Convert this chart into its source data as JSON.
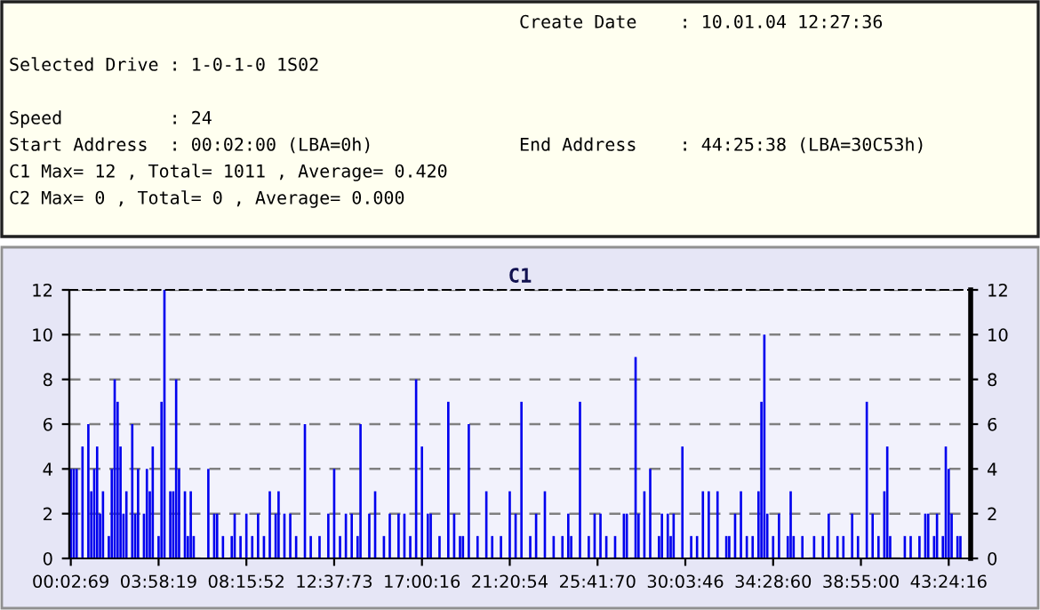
{
  "chart_data": {
    "type": "bar",
    "title": "C1",
    "annotations": [
      "Create Date    : 10.01.04 12:27:36",
      "Selected Drive : 1-0-1-0 1S02",
      "Speed          : 24",
      "Start Address  : 00:02:00 (LBA=0h)",
      "End Address    : 44:25:38 (LBA=30C53h)",
      "C1 Max= 12 , Total= 1011 , Average= 0.420",
      "C2 Max= 0 , Total= 0 , Average= 0.000"
    ],
    "categories": [
      "00:02:69",
      null,
      null,
      null,
      null,
      null,
      null,
      null,
      null,
      null,
      null,
      null,
      null,
      null,
      null,
      null,
      null,
      null,
      null,
      null,
      null,
      null,
      null,
      null,
      null,
      null,
      null,
      null,
      null,
      null,
      "03:58:19",
      null,
      null,
      null,
      null,
      null,
      null,
      null,
      null,
      null,
      null,
      null,
      null,
      null,
      null,
      null,
      null,
      null,
      null,
      null,
      null,
      null,
      null,
      null,
      null,
      null,
      null,
      null,
      null,
      null,
      "08:15:52",
      null,
      null,
      null,
      null,
      null,
      null,
      null,
      null,
      null,
      null,
      null,
      null,
      null,
      null,
      null,
      null,
      null,
      null,
      null,
      null,
      null,
      null,
      null,
      null,
      null,
      null,
      null,
      null,
      null,
      "12:37:73",
      null,
      null,
      null,
      null,
      null,
      null,
      null,
      null,
      null,
      null,
      null,
      null,
      null,
      null,
      null,
      null,
      null,
      null,
      null,
      null,
      null,
      null,
      null,
      null,
      null,
      null,
      null,
      null,
      null,
      "17:00:16",
      null,
      null,
      null,
      null,
      null,
      null,
      null,
      null,
      null,
      null,
      null,
      null,
      null,
      null,
      null,
      null,
      null,
      null,
      null,
      null,
      null,
      null,
      null,
      null,
      null,
      null,
      null,
      null,
      null,
      "21:20:54",
      null,
      null,
      null,
      null,
      null,
      null,
      null,
      null,
      null,
      null,
      null,
      null,
      null,
      null,
      null,
      null,
      null,
      null,
      null,
      null,
      null,
      null,
      null,
      null,
      null,
      null,
      null,
      null,
      null,
      "25:41:70",
      null,
      null,
      null,
      null,
      null,
      null,
      null,
      null,
      null,
      null,
      null,
      null,
      null,
      null,
      null,
      null,
      null,
      null,
      null,
      null,
      null,
      null,
      null,
      null,
      null,
      null,
      null,
      null,
      null,
      "30:03:46",
      null,
      null,
      null,
      null,
      null,
      null,
      null,
      null,
      null,
      null,
      null,
      null,
      null,
      null,
      null,
      null,
      null,
      null,
      null,
      null,
      null,
      null,
      null,
      null,
      null,
      null,
      null,
      null,
      null,
      "34:28:60",
      null,
      null,
      null,
      null,
      null,
      null,
      null,
      null,
      null,
      null,
      null,
      null,
      null,
      null,
      null,
      null,
      null,
      null,
      null,
      null,
      null,
      null,
      null,
      null,
      null,
      null,
      null,
      null,
      null,
      "38:55:00",
      null,
      null,
      null,
      null,
      null,
      null,
      null,
      null,
      null,
      null,
      null,
      null,
      null,
      null,
      null,
      null,
      null,
      null,
      null,
      null,
      null,
      null,
      null,
      null,
      null,
      null,
      null,
      null,
      null,
      "43:24:16",
      null,
      null,
      null,
      null,
      null,
      null,
      null
    ],
    "series": [
      {
        "color": "#0000ee",
        "values": [
          4,
          4,
          4,
          0,
          5,
          0,
          6,
          3,
          4,
          5,
          2,
          3,
          0,
          1,
          4,
          8,
          7,
          5,
          2,
          3,
          0,
          6,
          2,
          4,
          0,
          2,
          4,
          3,
          5,
          0,
          1,
          7,
          12,
          0,
          3,
          3,
          8,
          4,
          0,
          3,
          1,
          3,
          1,
          0,
          0,
          0,
          0,
          4,
          0,
          2,
          2,
          0,
          1,
          0,
          0,
          1,
          2,
          0,
          1,
          0,
          2,
          0,
          1,
          0,
          2,
          0,
          1,
          0,
          3,
          0,
          2,
          3,
          0,
          2,
          0,
          2,
          0,
          1,
          0,
          0,
          6,
          0,
          1,
          0,
          0,
          1,
          0,
          0,
          2,
          0,
          4,
          0,
          1,
          0,
          2,
          0,
          2,
          0,
          1,
          6,
          0,
          0,
          2,
          0,
          3,
          0,
          0,
          1,
          0,
          2,
          0,
          0,
          2,
          0,
          2,
          0,
          1,
          0,
          8,
          0,
          5,
          0,
          2,
          2,
          0,
          0,
          1,
          0,
          0,
          7,
          0,
          2,
          0,
          1,
          1,
          0,
          6,
          0,
          0,
          1,
          0,
          0,
          3,
          0,
          1,
          0,
          0,
          1,
          0,
          0,
          3,
          0,
          2,
          0,
          7,
          0,
          0,
          1,
          0,
          2,
          0,
          0,
          3,
          0,
          0,
          1,
          0,
          0,
          1,
          0,
          2,
          1,
          0,
          0,
          7,
          0,
          0,
          1,
          0,
          2,
          0,
          2,
          0,
          1,
          0,
          0,
          1,
          0,
          0,
          2,
          2,
          0,
          0,
          9,
          2,
          0,
          3,
          0,
          4,
          0,
          0,
          1,
          2,
          0,
          2,
          1,
          2,
          0,
          0,
          5,
          0,
          0,
          1,
          0,
          1,
          0,
          3,
          0,
          3,
          0,
          0,
          3,
          0,
          0,
          1,
          1,
          0,
          2,
          0,
          3,
          0,
          1,
          0,
          1,
          0,
          3,
          7,
          10,
          2,
          0,
          1,
          0,
          2,
          0,
          0,
          1,
          3,
          1,
          0,
          0,
          1,
          0,
          0,
          0,
          1,
          0,
          0,
          1,
          0,
          2,
          0,
          0,
          1,
          0,
          1,
          0,
          0,
          2,
          0,
          1,
          0,
          0,
          7,
          0,
          2,
          0,
          1,
          0,
          3,
          5,
          1,
          0,
          0,
          0,
          0,
          1,
          0,
          1,
          0,
          0,
          1,
          0,
          2,
          2,
          0,
          1,
          2,
          0,
          1,
          5,
          4,
          2,
          0,
          1,
          1,
          0,
          0,
          0
        ]
      }
    ],
    "ylim": [
      0,
      12
    ],
    "yticks": [
      0,
      2,
      4,
      6,
      8,
      10,
      12
    ],
    "y2lim": [
      0,
      12
    ],
    "y2ticks": [
      0,
      2,
      4,
      6,
      8,
      10,
      12
    ],
    "grid": "y"
  }
}
